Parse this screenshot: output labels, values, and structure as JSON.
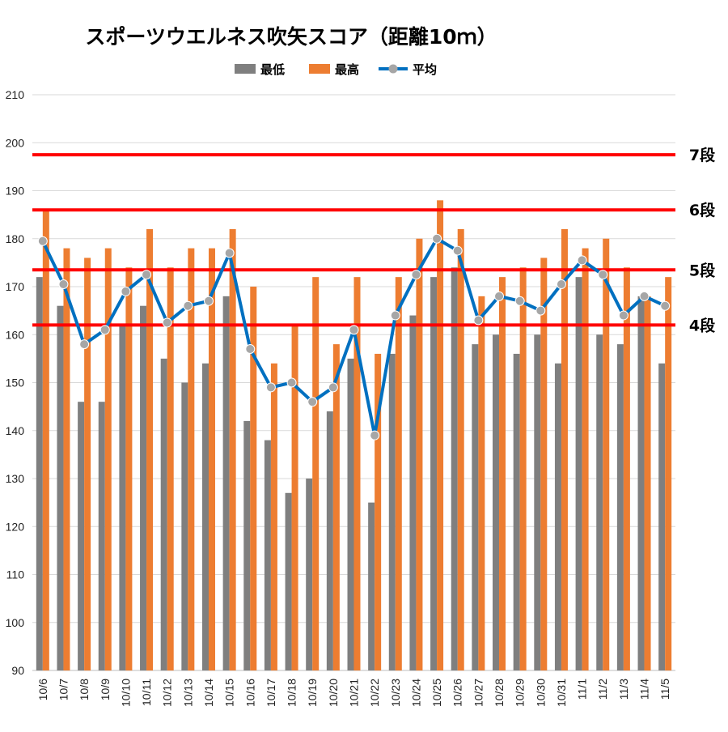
{
  "chart_data": {
    "type": "bar",
    "title": "スポーツウエルネス吹矢スコア（距離10ｍ）",
    "xlabel": "",
    "ylabel": "",
    "ylim": [
      90,
      210
    ],
    "yticks": [
      90,
      100,
      110,
      120,
      130,
      140,
      150,
      160,
      170,
      180,
      190,
      200,
      210
    ],
    "grid": true,
    "legend_position": "top",
    "categories": [
      "10/6",
      "10/7",
      "10/8",
      "10/9",
      "10/10",
      "10/11",
      "10/12",
      "10/13",
      "10/14",
      "10/15",
      "10/16",
      "10/17",
      "10/18",
      "10/19",
      "10/20",
      "10/21",
      "10/22",
      "10/23",
      "10/24",
      "10/25",
      "10/26",
      "10/27",
      "10/28",
      "10/29",
      "10/30",
      "10/31",
      "11/1",
      "11/2",
      "11/3",
      "11/4",
      "11/5"
    ],
    "series": [
      {
        "name": "最低",
        "type": "bar",
        "color": "#7f7f7f",
        "values": [
          172,
          166,
          146,
          146,
          162,
          166,
          155,
          150,
          154,
          168,
          142,
          138,
          127,
          130,
          144,
          155,
          125,
          156,
          164,
          172,
          174,
          158,
          160,
          156,
          160,
          154,
          172,
          160,
          158,
          168,
          154
        ]
      },
      {
        "name": "最高",
        "type": "bar",
        "color": "#ed7d31",
        "values": [
          186,
          178,
          176,
          178,
          174,
          182,
          174,
          178,
          178,
          182,
          170,
          154,
          162,
          172,
          158,
          172,
          156,
          172,
          180,
          188,
          182,
          168,
          172,
          174,
          176,
          182,
          178,
          180,
          174,
          168,
          172
        ]
      },
      {
        "name": "平均",
        "type": "line",
        "color": "#0070c0",
        "marker_color": "#a6a6a6",
        "values": [
          179.5,
          170.5,
          158,
          161,
          169,
          172.5,
          162.5,
          166,
          167,
          177,
          157,
          149,
          150,
          146,
          149,
          161,
          139,
          164,
          172.5,
          180,
          177.5,
          163,
          168,
          167,
          165,
          170.5,
          175.5,
          172.5,
          164,
          168,
          166
        ]
      }
    ],
    "reference_lines": [
      {
        "label": "7段",
        "value": 197.5,
        "color": "#ff0000"
      },
      {
        "label": "6段",
        "value": 186,
        "color": "#ff0000"
      },
      {
        "label": "5段",
        "value": 173.5,
        "color": "#ff0000"
      },
      {
        "label": "4段",
        "value": 162,
        "color": "#ff0000"
      }
    ]
  }
}
